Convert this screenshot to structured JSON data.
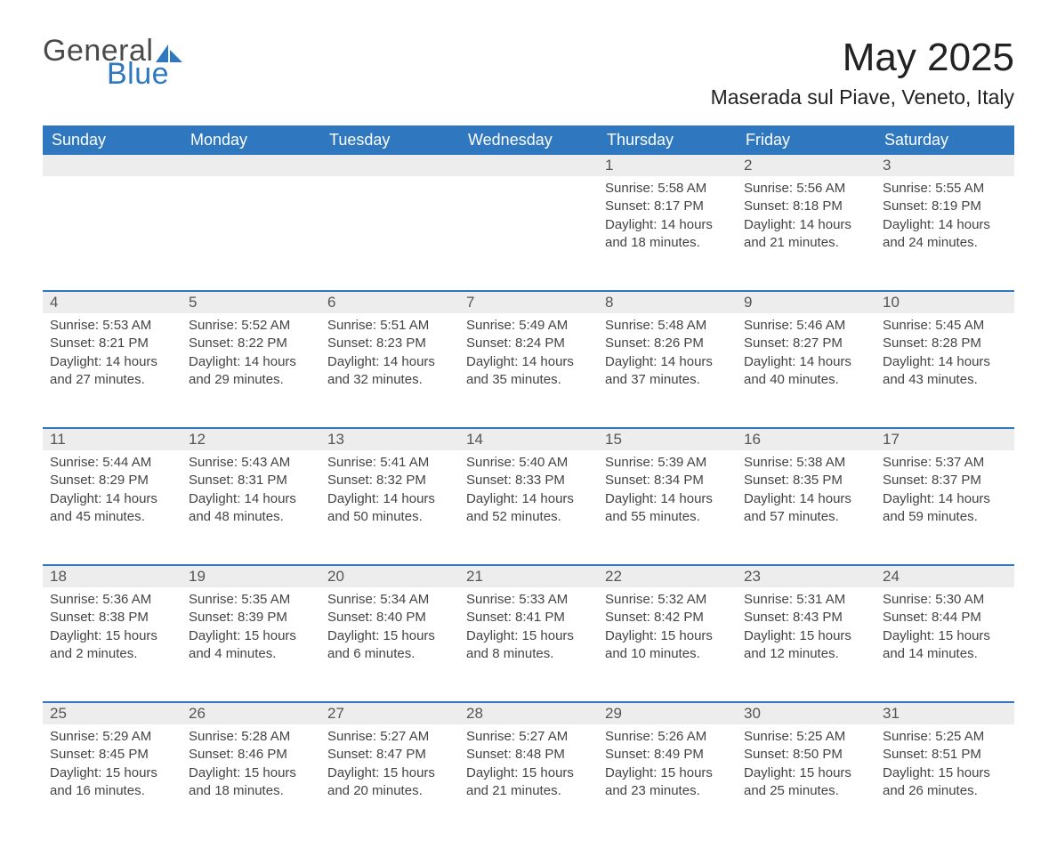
{
  "brand": {
    "name_part1": "General",
    "name_part2": "Blue",
    "accent_color": "#2f78bf",
    "text_color": "#4a4a4a"
  },
  "header": {
    "month_title": "May 2025",
    "location": "Maserada sul Piave, Veneto, Italy"
  },
  "styling": {
    "header_bg": "#2f78bf",
    "header_text": "#ffffff",
    "daynum_bg": "#ededed",
    "daynum_border_top": "#2f78bf",
    "body_text": "#444444",
    "page_bg": "#ffffff",
    "font_family": "Arial",
    "month_title_fontsize_pt": 33,
    "location_fontsize_pt": 17,
    "weekday_fontsize_pt": 13,
    "daynum_fontsize_pt": 13,
    "body_fontsize_pt": 11
  },
  "weekdays": [
    "Sunday",
    "Monday",
    "Tuesday",
    "Wednesday",
    "Thursday",
    "Friday",
    "Saturday"
  ],
  "leading_blanks": 4,
  "days": [
    {
      "n": "1",
      "sunrise": "Sunrise: 5:58 AM",
      "sunset": "Sunset: 8:17 PM",
      "daylight": "Daylight: 14 hours and 18 minutes."
    },
    {
      "n": "2",
      "sunrise": "Sunrise: 5:56 AM",
      "sunset": "Sunset: 8:18 PM",
      "daylight": "Daylight: 14 hours and 21 minutes."
    },
    {
      "n": "3",
      "sunrise": "Sunrise: 5:55 AM",
      "sunset": "Sunset: 8:19 PM",
      "daylight": "Daylight: 14 hours and 24 minutes."
    },
    {
      "n": "4",
      "sunrise": "Sunrise: 5:53 AM",
      "sunset": "Sunset: 8:21 PM",
      "daylight": "Daylight: 14 hours and 27 minutes."
    },
    {
      "n": "5",
      "sunrise": "Sunrise: 5:52 AM",
      "sunset": "Sunset: 8:22 PM",
      "daylight": "Daylight: 14 hours and 29 minutes."
    },
    {
      "n": "6",
      "sunrise": "Sunrise: 5:51 AM",
      "sunset": "Sunset: 8:23 PM",
      "daylight": "Daylight: 14 hours and 32 minutes."
    },
    {
      "n": "7",
      "sunrise": "Sunrise: 5:49 AM",
      "sunset": "Sunset: 8:24 PM",
      "daylight": "Daylight: 14 hours and 35 minutes."
    },
    {
      "n": "8",
      "sunrise": "Sunrise: 5:48 AM",
      "sunset": "Sunset: 8:26 PM",
      "daylight": "Daylight: 14 hours and 37 minutes."
    },
    {
      "n": "9",
      "sunrise": "Sunrise: 5:46 AM",
      "sunset": "Sunset: 8:27 PM",
      "daylight": "Daylight: 14 hours and 40 minutes."
    },
    {
      "n": "10",
      "sunrise": "Sunrise: 5:45 AM",
      "sunset": "Sunset: 8:28 PM",
      "daylight": "Daylight: 14 hours and 43 minutes."
    },
    {
      "n": "11",
      "sunrise": "Sunrise: 5:44 AM",
      "sunset": "Sunset: 8:29 PM",
      "daylight": "Daylight: 14 hours and 45 minutes."
    },
    {
      "n": "12",
      "sunrise": "Sunrise: 5:43 AM",
      "sunset": "Sunset: 8:31 PM",
      "daylight": "Daylight: 14 hours and 48 minutes."
    },
    {
      "n": "13",
      "sunrise": "Sunrise: 5:41 AM",
      "sunset": "Sunset: 8:32 PM",
      "daylight": "Daylight: 14 hours and 50 minutes."
    },
    {
      "n": "14",
      "sunrise": "Sunrise: 5:40 AM",
      "sunset": "Sunset: 8:33 PM",
      "daylight": "Daylight: 14 hours and 52 minutes."
    },
    {
      "n": "15",
      "sunrise": "Sunrise: 5:39 AM",
      "sunset": "Sunset: 8:34 PM",
      "daylight": "Daylight: 14 hours and 55 minutes."
    },
    {
      "n": "16",
      "sunrise": "Sunrise: 5:38 AM",
      "sunset": "Sunset: 8:35 PM",
      "daylight": "Daylight: 14 hours and 57 minutes."
    },
    {
      "n": "17",
      "sunrise": "Sunrise: 5:37 AM",
      "sunset": "Sunset: 8:37 PM",
      "daylight": "Daylight: 14 hours and 59 minutes."
    },
    {
      "n": "18",
      "sunrise": "Sunrise: 5:36 AM",
      "sunset": "Sunset: 8:38 PM",
      "daylight": "Daylight: 15 hours and 2 minutes."
    },
    {
      "n": "19",
      "sunrise": "Sunrise: 5:35 AM",
      "sunset": "Sunset: 8:39 PM",
      "daylight": "Daylight: 15 hours and 4 minutes."
    },
    {
      "n": "20",
      "sunrise": "Sunrise: 5:34 AM",
      "sunset": "Sunset: 8:40 PM",
      "daylight": "Daylight: 15 hours and 6 minutes."
    },
    {
      "n": "21",
      "sunrise": "Sunrise: 5:33 AM",
      "sunset": "Sunset: 8:41 PM",
      "daylight": "Daylight: 15 hours and 8 minutes."
    },
    {
      "n": "22",
      "sunrise": "Sunrise: 5:32 AM",
      "sunset": "Sunset: 8:42 PM",
      "daylight": "Daylight: 15 hours and 10 minutes."
    },
    {
      "n": "23",
      "sunrise": "Sunrise: 5:31 AM",
      "sunset": "Sunset: 8:43 PM",
      "daylight": "Daylight: 15 hours and 12 minutes."
    },
    {
      "n": "24",
      "sunrise": "Sunrise: 5:30 AM",
      "sunset": "Sunset: 8:44 PM",
      "daylight": "Daylight: 15 hours and 14 minutes."
    },
    {
      "n": "25",
      "sunrise": "Sunrise: 5:29 AM",
      "sunset": "Sunset: 8:45 PM",
      "daylight": "Daylight: 15 hours and 16 minutes."
    },
    {
      "n": "26",
      "sunrise": "Sunrise: 5:28 AM",
      "sunset": "Sunset: 8:46 PM",
      "daylight": "Daylight: 15 hours and 18 minutes."
    },
    {
      "n": "27",
      "sunrise": "Sunrise: 5:27 AM",
      "sunset": "Sunset: 8:47 PM",
      "daylight": "Daylight: 15 hours and 20 minutes."
    },
    {
      "n": "28",
      "sunrise": "Sunrise: 5:27 AM",
      "sunset": "Sunset: 8:48 PM",
      "daylight": "Daylight: 15 hours and 21 minutes."
    },
    {
      "n": "29",
      "sunrise": "Sunrise: 5:26 AM",
      "sunset": "Sunset: 8:49 PM",
      "daylight": "Daylight: 15 hours and 23 minutes."
    },
    {
      "n": "30",
      "sunrise": "Sunrise: 5:25 AM",
      "sunset": "Sunset: 8:50 PM",
      "daylight": "Daylight: 15 hours and 25 minutes."
    },
    {
      "n": "31",
      "sunrise": "Sunrise: 5:25 AM",
      "sunset": "Sunset: 8:51 PM",
      "daylight": "Daylight: 15 hours and 26 minutes."
    }
  ]
}
